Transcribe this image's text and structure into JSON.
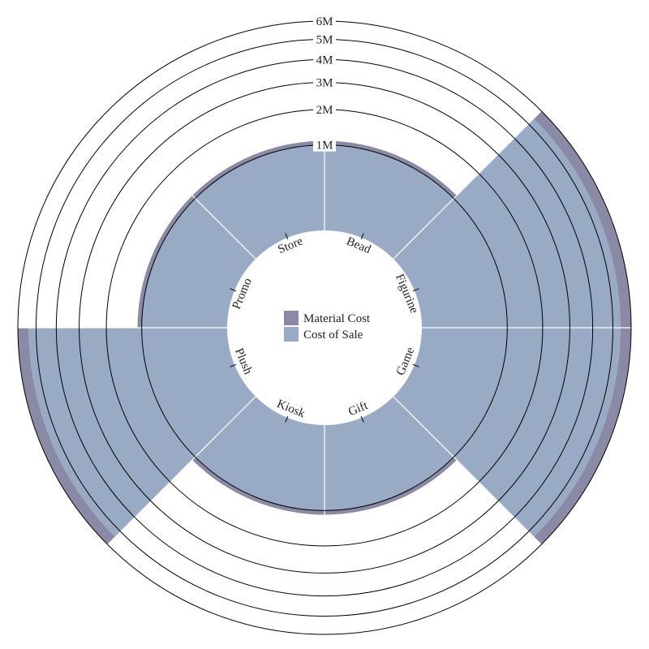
{
  "chart_data": {
    "type": "bar",
    "subtype": "stacked-radial",
    "title": "",
    "categories": [
      "Bead",
      "Figurine",
      "Game",
      "Gift",
      "Kiosk",
      "Plush",
      "Promo",
      "Store"
    ],
    "series": [
      {
        "name": "Cost of Sale",
        "color": "#98aac4",
        "values": [
          1000000,
          5400000,
          5400000,
          1000000,
          1000000,
          5400000,
          1000000,
          1000000
        ]
      },
      {
        "name": "Material Cost",
        "color": "#8b8aa6",
        "values": [
          100000,
          600000,
          600000,
          100000,
          100000,
          600000,
          100000,
          100000
        ]
      }
    ],
    "y_ticks": [
      "1M",
      "2M",
      "3M",
      "4M",
      "5M",
      "6M"
    ],
    "y_tick_values": [
      1000000,
      2000000,
      3000000,
      4000000,
      5000000,
      6000000
    ],
    "ylim": [
      0,
      6000000
    ],
    "legend": {
      "position": "center",
      "order": [
        "Material Cost",
        "Cost of Sale"
      ]
    },
    "grid": true
  }
}
